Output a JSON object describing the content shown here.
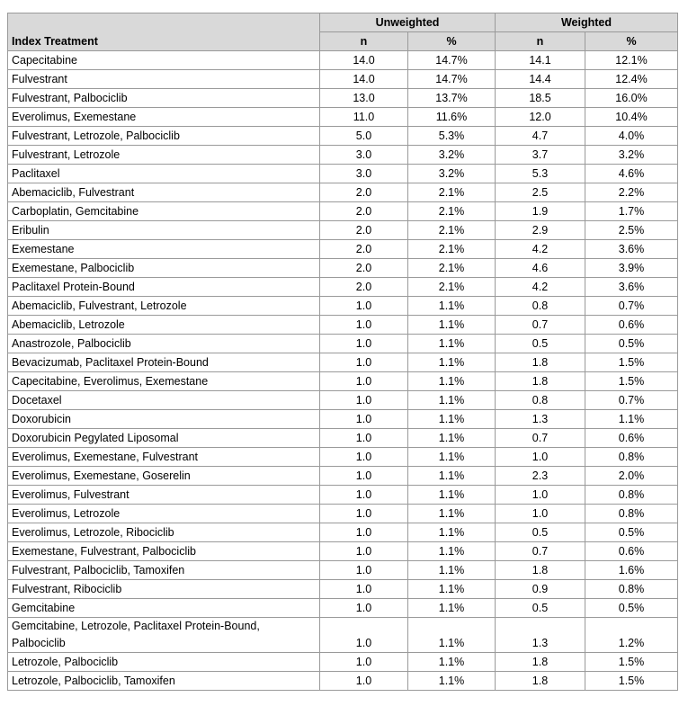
{
  "table": {
    "group_headers": [
      "Unweighted",
      "Weighted"
    ],
    "columns": [
      "Index Treatment",
      "n",
      "%",
      "n",
      "%"
    ],
    "rows": [
      [
        "Capecitabine",
        "14.0",
        "14.7%",
        "14.1",
        "12.1%"
      ],
      [
        "Fulvestrant",
        "14.0",
        "14.7%",
        "14.4",
        "12.4%"
      ],
      [
        "Fulvestrant, Palbociclib",
        "13.0",
        "13.7%",
        "18.5",
        "16.0%"
      ],
      [
        "Everolimus, Exemestane",
        "11.0",
        "11.6%",
        "12.0",
        "10.4%"
      ],
      [
        "Fulvestrant, Letrozole, Palbociclib",
        "5.0",
        "5.3%",
        "4.7",
        "4.0%"
      ],
      [
        "Fulvestrant, Letrozole",
        "3.0",
        "3.2%",
        "3.7",
        "3.2%"
      ],
      [
        "Paclitaxel",
        "3.0",
        "3.2%",
        "5.3",
        "4.6%"
      ],
      [
        "Abemaciclib, Fulvestrant",
        "2.0",
        "2.1%",
        "2.5",
        "2.2%"
      ],
      [
        "Carboplatin, Gemcitabine",
        "2.0",
        "2.1%",
        "1.9",
        "1.7%"
      ],
      [
        "Eribulin",
        "2.0",
        "2.1%",
        "2.9",
        "2.5%"
      ],
      [
        "Exemestane",
        "2.0",
        "2.1%",
        "4.2",
        "3.6%"
      ],
      [
        "Exemestane, Palbociclib",
        "2.0",
        "2.1%",
        "4.6",
        "3.9%"
      ],
      [
        "Paclitaxel Protein-Bound",
        "2.0",
        "2.1%",
        "4.2",
        "3.6%"
      ],
      [
        "Abemaciclib, Fulvestrant, Letrozole",
        "1.0",
        "1.1%",
        "0.8",
        "0.7%"
      ],
      [
        "Abemaciclib, Letrozole",
        "1.0",
        "1.1%",
        "0.7",
        "0.6%"
      ],
      [
        "Anastrozole, Palbociclib",
        "1.0",
        "1.1%",
        "0.5",
        "0.5%"
      ],
      [
        "Bevacizumab, Paclitaxel Protein-Bound",
        "1.0",
        "1.1%",
        "1.8",
        "1.5%"
      ],
      [
        "Capecitabine, Everolimus, Exemestane",
        "1.0",
        "1.1%",
        "1.8",
        "1.5%"
      ],
      [
        "Docetaxel",
        "1.0",
        "1.1%",
        "0.8",
        "0.7%"
      ],
      [
        "Doxorubicin",
        "1.0",
        "1.1%",
        "1.3",
        "1.1%"
      ],
      [
        "Doxorubicin Pegylated Liposomal",
        "1.0",
        "1.1%",
        "0.7",
        "0.6%"
      ],
      [
        "Everolimus, Exemestane, Fulvestrant",
        "1.0",
        "1.1%",
        "1.0",
        "0.8%"
      ],
      [
        "Everolimus, Exemestane, Goserelin",
        "1.0",
        "1.1%",
        "2.3",
        "2.0%"
      ],
      [
        "Everolimus, Fulvestrant",
        "1.0",
        "1.1%",
        "1.0",
        "0.8%"
      ],
      [
        "Everolimus, Letrozole",
        "1.0",
        "1.1%",
        "1.0",
        "0.8%"
      ],
      [
        "Everolimus, Letrozole, Ribociclib",
        "1.0",
        "1.1%",
        "0.5",
        "0.5%"
      ],
      [
        "Exemestane, Fulvestrant, Palbociclib",
        "1.0",
        "1.1%",
        "0.7",
        "0.6%"
      ],
      [
        "Fulvestrant, Palbociclib, Tamoxifen",
        "1.0",
        "1.1%",
        "1.8",
        "1.6%"
      ],
      [
        "Fulvestrant, Ribociclib",
        "1.0",
        "1.1%",
        "0.9",
        "0.8%"
      ],
      [
        "Gemcitabine",
        "1.0",
        "1.1%",
        "0.5",
        "0.5%"
      ],
      [
        "Gemcitabine, Letrozole, Paclitaxel Protein-Bound, Palbociclib",
        "1.0",
        "1.1%",
        "1.3",
        "1.2%"
      ],
      [
        "Letrozole, Palbociclib",
        "1.0",
        "1.1%",
        "1.8",
        "1.5%"
      ],
      [
        "Letrozole, Palbociclib, Tamoxifen",
        "1.0",
        "1.1%",
        "1.8",
        "1.5%"
      ]
    ]
  }
}
